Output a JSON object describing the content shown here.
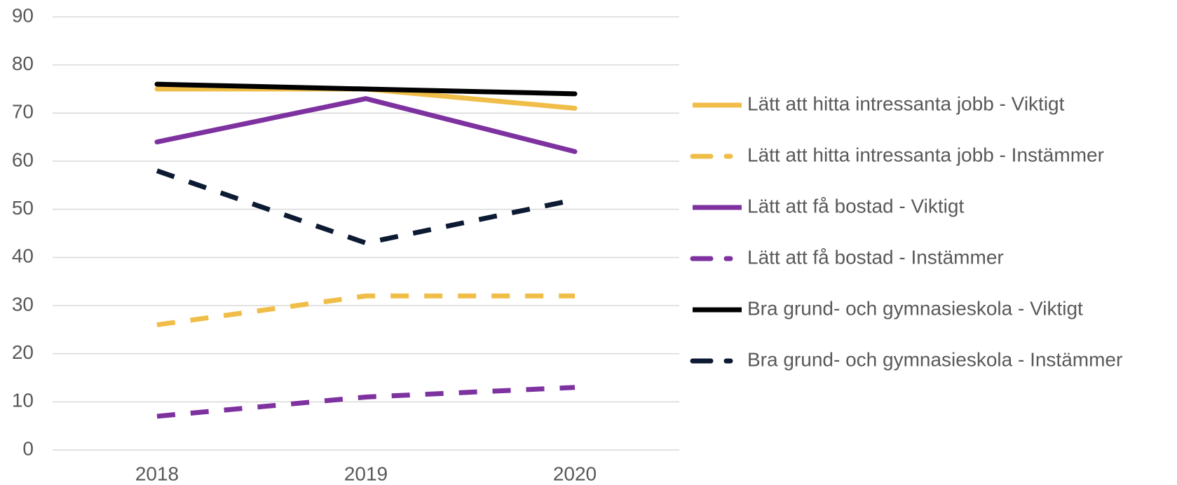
{
  "chart_data": {
    "type": "line",
    "categories": [
      "2018",
      "2019",
      "2020"
    ],
    "series": [
      {
        "name": "Lätt att hitta intressanta jobb - Viktigt",
        "color": "#F0BE48",
        "dashed": false,
        "values": [
          75,
          75,
          71
        ]
      },
      {
        "name": "Lätt att hitta intressanta jobb - Instämmer",
        "color": "#F0BE48",
        "dashed": true,
        "values": [
          26,
          32,
          32
        ]
      },
      {
        "name": "Lätt att få bostad - Viktigt",
        "color": "#7E32A0",
        "dashed": false,
        "values": [
          64,
          73,
          62
        ]
      },
      {
        "name": "Lätt att få bostad - Instämmer",
        "color": "#7E32A0",
        "dashed": true,
        "values": [
          7,
          11,
          13
        ]
      },
      {
        "name": "Bra grund- och gymnasieskola - Viktigt",
        "color": "#000000",
        "dashed": false,
        "values": [
          76,
          75,
          74
        ]
      },
      {
        "name": "Bra grund- och gymnasieskola - Instämmer",
        "color": "#0D1A33",
        "dashed": true,
        "values": [
          58,
          43,
          52
        ]
      }
    ],
    "ylim": [
      0,
      90
    ],
    "yticks": [
      0,
      10,
      20,
      30,
      40,
      50,
      60,
      70,
      80,
      90
    ],
    "grid": true,
    "legend": "right"
  }
}
